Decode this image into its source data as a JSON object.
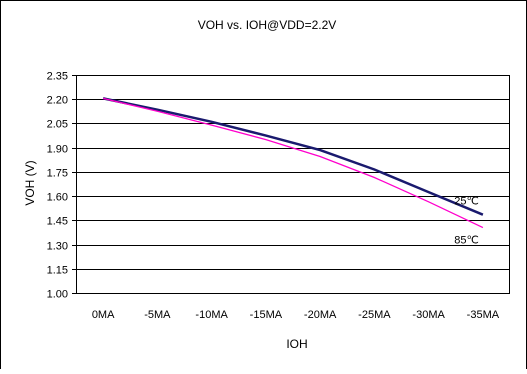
{
  "chart_data": {
    "type": "line",
    "title": "VOH vs. IOH@VDD=2.2V",
    "xlabel": "IOH",
    "ylabel": "VOH (V)",
    "categories": [
      "0MA",
      "-5MA",
      "-10MA",
      "-15MA",
      "-20MA",
      "-25MA",
      "-30MA",
      "-35MA"
    ],
    "yticks": [
      "1.00",
      "1.15",
      "1.30",
      "1.45",
      "1.60",
      "1.75",
      "1.90",
      "2.05",
      "2.20",
      "2.35"
    ],
    "ylim": [
      1.0,
      2.35
    ],
    "grid": true,
    "series": [
      {
        "name": "25℃",
        "color": "#1a1a6e",
        "values": [
          2.205,
          2.135,
          2.06,
          1.975,
          1.885,
          1.765,
          1.625,
          1.485
        ]
      },
      {
        "name": "85℃",
        "color": "#ff00cc",
        "values": [
          2.205,
          2.125,
          2.04,
          1.95,
          1.845,
          1.715,
          1.565,
          1.405
        ]
      }
    ]
  }
}
